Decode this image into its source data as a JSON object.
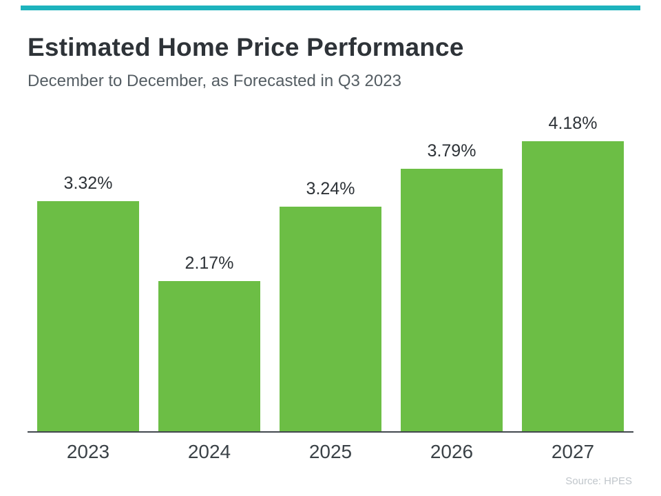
{
  "header": {
    "title": "Estimated Home Price Performance",
    "subtitle": "December to December, as Forecasted in Q3 2023"
  },
  "chart_data": {
    "type": "bar",
    "categories": [
      "2023",
      "2024",
      "2025",
      "2026",
      "2027"
    ],
    "values": [
      3.32,
      2.17,
      3.24,
      3.79,
      4.18
    ],
    "labels": [
      "3.32%",
      "2.17%",
      "3.24%",
      "3.79%",
      "4.18%"
    ],
    "title": "Estimated Home Price Performance",
    "xlabel": "",
    "ylabel": "",
    "ylim": [
      0,
      4.6
    ],
    "grid": false,
    "legend": false,
    "bar_color": "#6cbe45",
    "axis_color": "#41474d"
  },
  "footer": {
    "source": "Source: HPES"
  },
  "theme": {
    "accent_color": "#1db3bd"
  }
}
